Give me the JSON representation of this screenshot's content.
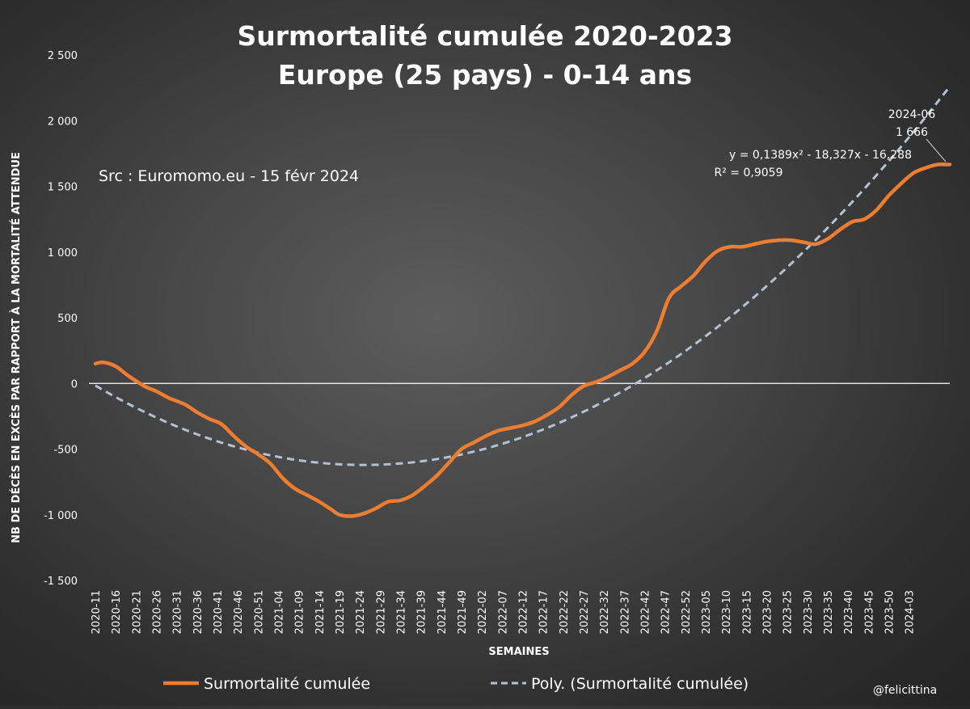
{
  "chart_data": {
    "type": "line",
    "title": "Surmortalité cumulée 2020-2023",
    "subtitle": "Europe (25 pays) - 0-14 ans",
    "xlabel": "SEMAINES",
    "ylabel": "NB DE DÉCÈS EN EXCÈS PAR RAPPORT À LA MORTALITÉ ATTENDUE",
    "ylim": [
      -1500,
      2500
    ],
    "yticks": [
      2500,
      2000,
      1500,
      1000,
      500,
      0,
      -500,
      -1000,
      -1500
    ],
    "ytick_labels": [
      "2 500",
      "2 000",
      "1 500",
      "1 000",
      "500",
      "0",
      "-500",
      "-1 000",
      "-1 500"
    ],
    "xtick_labels": [
      "2020-11",
      "2020-16",
      "2020-21",
      "2020-26",
      "2020-31",
      "2020-36",
      "2020-41",
      "2020-46",
      "2020-51",
      "2021-04",
      "2021-09",
      "2021-14",
      "2021-19",
      "2021-24",
      "2021-29",
      "2021-34",
      "2021-39",
      "2021-44",
      "2021-49",
      "2022-02",
      "2022-07",
      "2022-12",
      "2022-17",
      "2022-22",
      "2022-27",
      "2022-32",
      "2022-37",
      "2022-42",
      "2022-47",
      "2022-52",
      "2023-05",
      "2023-10",
      "2023-15",
      "2023-20",
      "2023-25",
      "2023-30",
      "2023-35",
      "2023-40",
      "2023-45",
      "2023-50",
      "2024-03"
    ],
    "week_range": [
      0,
      210
    ],
    "source_note": "Src : Euromomo.eu  - 15 févr 2024",
    "series": [
      {
        "name": "Surmortalité cumulée",
        "color": "#ed7d31",
        "style": "solid",
        "x": [
          0,
          2,
          5,
          8,
          12,
          15,
          18,
          22,
          25,
          28,
          31,
          34,
          37,
          40,
          43,
          46,
          49,
          52,
          55,
          58,
          60,
          63,
          66,
          69,
          72,
          75,
          78,
          81,
          84,
          87,
          90,
          93,
          96,
          99,
          102,
          105,
          108,
          111,
          114,
          117,
          120,
          123,
          126,
          129,
          132,
          135,
          138,
          141,
          144,
          147,
          150,
          153,
          156,
          159,
          162,
          165,
          168,
          171,
          174,
          177,
          180,
          183,
          186,
          189,
          192,
          195,
          198,
          201,
          204,
          207,
          209,
          210
        ],
        "y": [
          150,
          160,
          130,
          60,
          -20,
          -60,
          -110,
          -160,
          -220,
          -270,
          -310,
          -400,
          -480,
          -540,
          -610,
          -720,
          -800,
          -850,
          -900,
          -960,
          -1000,
          -1010,
          -990,
          -950,
          -900,
          -890,
          -850,
          -780,
          -700,
          -600,
          -500,
          -450,
          -400,
          -360,
          -340,
          -320,
          -290,
          -240,
          -180,
          -90,
          -20,
          10,
          50,
          100,
          150,
          240,
          400,
          650,
          740,
          820,
          930,
          1010,
          1040,
          1040,
          1060,
          1080,
          1090,
          1090,
          1075,
          1060,
          1100,
          1170,
          1230,
          1250,
          1320,
          1430,
          1520,
          1600,
          1640,
          1666,
          1666,
          1666
        ]
      },
      {
        "name": "Poly. (Surmortalité cumulée)",
        "color": "#b4c0d6",
        "style": "dashed"
      }
    ],
    "trendline": {
      "equation": "y = 0,1389x² - 18,327x - 16,288",
      "r_squared": "R² = 0,9059",
      "a": 0.1389,
      "b": -18.327,
      "c": -16.288
    },
    "annotation": {
      "label": "2024-06",
      "value": "1 666"
    },
    "legend": {
      "placement": "bottom"
    }
  },
  "credit": "@felicittina"
}
